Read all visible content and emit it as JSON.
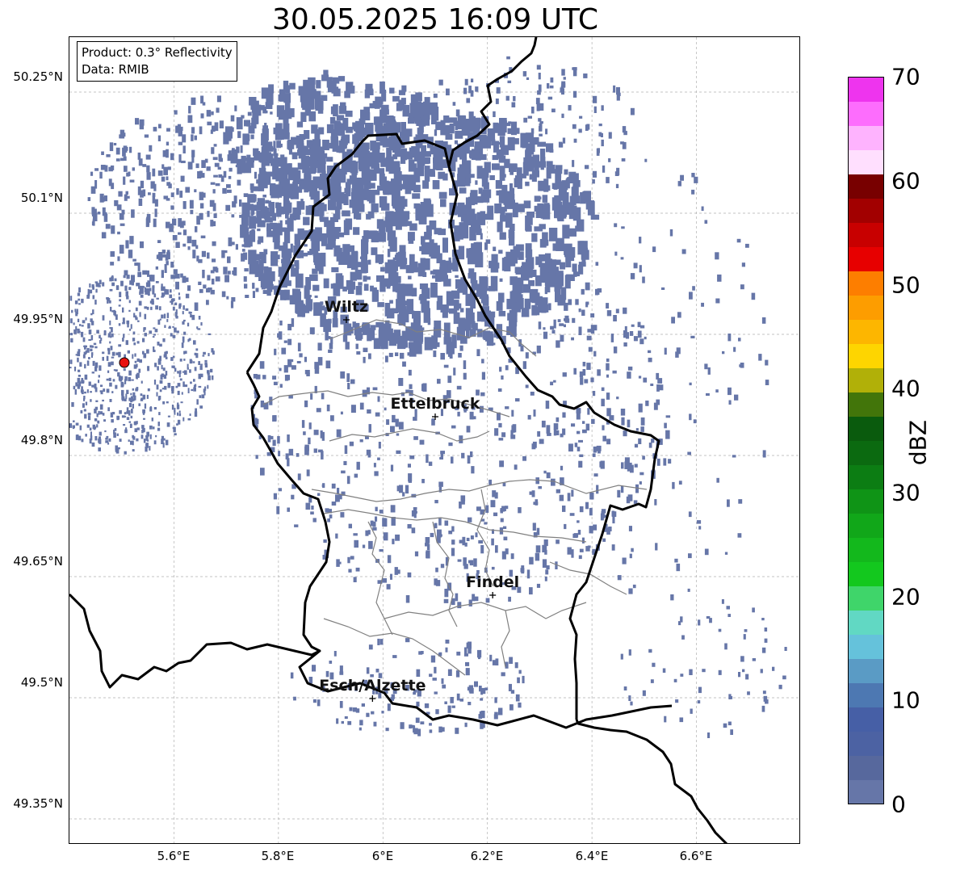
{
  "title": "30.05.2025 16:09 UTC",
  "info": {
    "product": "Product: 0.3° Reflectivity",
    "data": "Data: RMIB"
  },
  "lat_ticks": [
    "50.25°N",
    "50.1°N",
    "49.95°N",
    "49.8°N",
    "49.65°N",
    "49.5°N",
    "49.35°N"
  ],
  "lon_ticks": [
    "5.6°E",
    "5.8°E",
    "6°E",
    "6.2°E",
    "6.4°E",
    "6.6°E"
  ],
  "cities": [
    {
      "name": "Wiltz",
      "lon": 5.93,
      "lat": 49.968
    },
    {
      "name": "Ettelbruck",
      "lon": 6.1,
      "lat": 49.848
    },
    {
      "name": "Findel",
      "lon": 6.21,
      "lat": 49.627
    },
    {
      "name": "Esch/Alzette",
      "lon": 5.98,
      "lat": 49.499
    }
  ],
  "radar_site": {
    "lon": 5.505,
    "lat": 49.915,
    "color": "#e8120f"
  },
  "colorbar": {
    "label": "dBZ",
    "ticks": [
      "0",
      "10",
      "20",
      "30",
      "40",
      "50",
      "60",
      "70"
    ],
    "colors": [
      "#6676a8",
      "#57689d",
      "#4c62a3",
      "#465fa6",
      "#4d78b2",
      "#5a9bc5",
      "#65c2db",
      "#61d8c3",
      "#3fd56a",
      "#13c81e",
      "#13b81c",
      "#11a719",
      "#0f9416",
      "#0c7d13",
      "#0b6a10",
      "#0a5b0d",
      "#42750a",
      "#b1b008",
      "#fed500",
      "#fdb600",
      "#fd9d00",
      "#fd7e00",
      "#e70000",
      "#c80000",
      "#a20000",
      "#780000",
      "#ffdffe",
      "#feb3fe",
      "#fd6dfd",
      "#ee34ee"
    ]
  },
  "reflectivity_color": "#6676a8",
  "border_color": "#000000",
  "canton_color": "#808080"
}
